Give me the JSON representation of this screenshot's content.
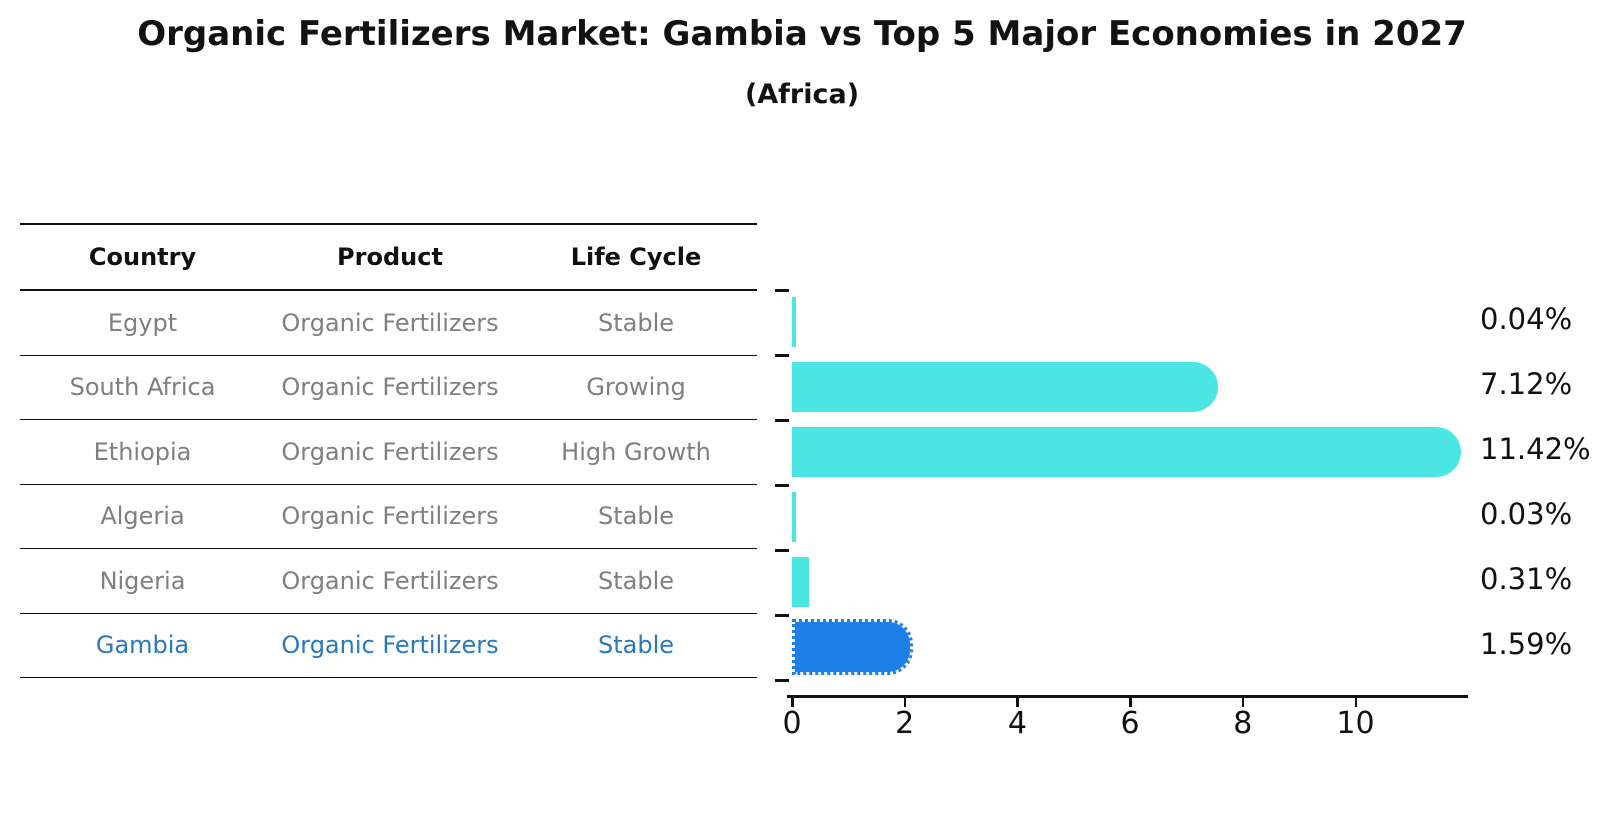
{
  "title": "Organic Fertilizers Market: Gambia vs Top 5 Major Economies in 2027",
  "subtitle": "(Africa)",
  "table": {
    "headers": [
      "Country",
      "Product",
      "Life Cycle"
    ],
    "rows": [
      {
        "country": "Egypt",
        "product": "Organic Fertilizers",
        "life_cycle": "Stable",
        "highlight": false
      },
      {
        "country": "South Africa",
        "product": "Organic Fertilizers",
        "life_cycle": "Growing",
        "highlight": false
      },
      {
        "country": "Ethiopia",
        "product": "Organic Fertilizers",
        "life_cycle": "High Growth",
        "highlight": false
      },
      {
        "country": "Algeria",
        "product": "Organic Fertilizers",
        "life_cycle": "Stable",
        "highlight": false
      },
      {
        "country": "Nigeria",
        "product": "Organic Fertilizers",
        "life_cycle": "Stable",
        "highlight": false
      },
      {
        "country": "Gambia",
        "product": "Organic Fertilizers",
        "life_cycle": "Stable",
        "highlight": true
      }
    ]
  },
  "chart_data": {
    "type": "bar",
    "orientation": "horizontal",
    "title": "Organic Fertilizers Market: Gambia vs Top 5 Major Economies in 2027",
    "subtitle": "(Africa)",
    "categories": [
      "Egypt",
      "South Africa",
      "Ethiopia",
      "Algeria",
      "Nigeria",
      "Gambia"
    ],
    "values": [
      0.04,
      7.12,
      11.42,
      0.03,
      0.31,
      1.59
    ],
    "value_labels": [
      "0.04%",
      "7.12%",
      "11.42%",
      "0.03%",
      "0.31%",
      "1.59%"
    ],
    "highlight_index": 5,
    "x_ticks": [
      0,
      2,
      4,
      6,
      8,
      10
    ],
    "xlim": [
      0,
      12
    ],
    "grid": false,
    "legend": "none",
    "xlabel": "",
    "ylabel": ""
  },
  "colors": {
    "bar_default": "#4BE5E3",
    "bar_highlight": "#1E7FE8",
    "highlight_text": "#2878BE",
    "row_text": "#7f7f7f",
    "header_text": "#111111",
    "axis": "#111111"
  }
}
